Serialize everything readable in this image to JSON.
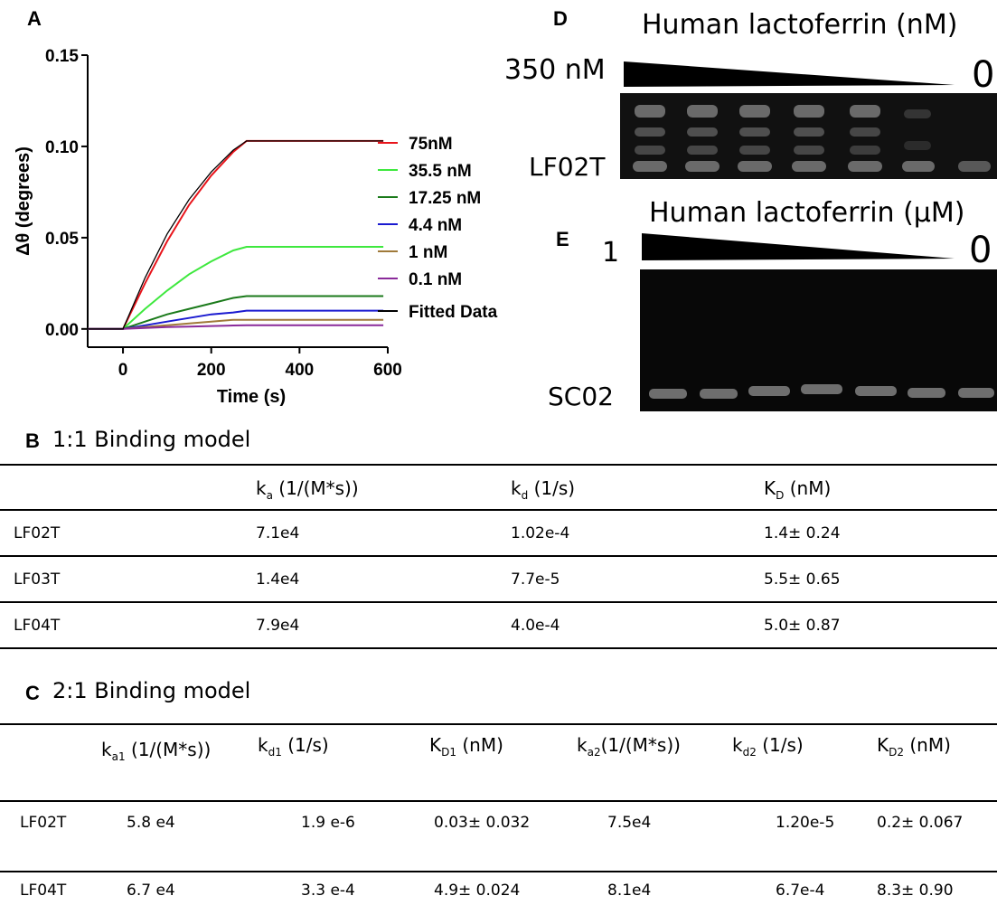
{
  "panel_labels": [
    "A",
    "B",
    "C",
    "D",
    "E"
  ],
  "chart_data": {
    "type": "line",
    "y_label": "Δθ (degrees)",
    "x_label": "Time (s)",
    "x": [
      -80,
      0,
      50,
      100,
      150,
      200,
      250,
      280,
      350,
      450,
      550,
      590
    ],
    "xlim": [
      -80,
      600
    ],
    "xticks": [
      0,
      200,
      400,
      600
    ],
    "ylim": [
      -0.01,
      0.15
    ],
    "yticks": [
      {
        "value": 0,
        "label": "0.00"
      },
      {
        "value": 0.05,
        "label": "0.05"
      },
      {
        "value": 0.1,
        "label": "0.10"
      },
      {
        "value": 0.15,
        "label": "0.15"
      }
    ],
    "series": [
      {
        "name": "75nM",
        "color": "#e8141b",
        "values": [
          0,
          0,
          0.025,
          0.048,
          0.068,
          0.084,
          0.097,
          0.103,
          0.103,
          0.103,
          0.103,
          0.103
        ]
      },
      {
        "name": "35.5 nM",
        "color": "#3ee83e",
        "values": [
          0,
          0,
          0.011,
          0.021,
          0.03,
          0.037,
          0.043,
          0.045,
          0.045,
          0.045,
          0.045,
          0.045
        ]
      },
      {
        "name": "17.25 nM",
        "color": "#1a7a1a",
        "values": [
          0,
          0,
          0.004,
          0.008,
          0.011,
          0.014,
          0.017,
          0.018,
          0.018,
          0.018,
          0.018,
          0.018
        ]
      },
      {
        "name": "4.4 nM",
        "color": "#1a1ad0",
        "values": [
          0,
          0,
          0.002,
          0.004,
          0.006,
          0.008,
          0.009,
          0.01,
          0.01,
          0.01,
          0.01,
          0.01
        ]
      },
      {
        "name": "1 nM",
        "color": "#a07a3a",
        "values": [
          0,
          0,
          0.001,
          0.002,
          0.003,
          0.004,
          0.005,
          0.005,
          0.005,
          0.005,
          0.005,
          0.005
        ]
      },
      {
        "name": "0.1 nM",
        "color": "#8a2a9a",
        "values": [
          0,
          0,
          0.0005,
          0.001,
          0.0013,
          0.0016,
          0.0019,
          0.002,
          0.002,
          0.002,
          0.002,
          0.002
        ]
      },
      {
        "name": "Fitted Data",
        "color": "#000000",
        "values": [
          0,
          0,
          0.028,
          0.052,
          0.071,
          0.086,
          0.098,
          0.103,
          0.103,
          0.103,
          0.103,
          0.103
        ]
      }
    ]
  },
  "gel_d": {
    "title": "Human lactoferrin (nM)",
    "left_label": "350 nM",
    "right_label": "0",
    "sample": "LF02T"
  },
  "gel_e": {
    "title": "Human lactoferrin (μM)",
    "left_label": "1",
    "right_label": "0",
    "sample": "SC02"
  },
  "table_b": {
    "title": "1:1 Binding model",
    "header": [
      {
        "main": "k",
        "sub": "a",
        "rest": " (1/(M*s))"
      },
      {
        "main": "k",
        "sub": "d",
        "rest": " (1/s)"
      },
      {
        "main": "K",
        "sub": "D",
        "rest": " (nM)"
      }
    ],
    "rows": [
      [
        "LF02T",
        "7.1e4",
        "1.02e-4",
        "1.4± 0.24"
      ],
      [
        "LF03T",
        "1.4e4",
        "7.7e-5",
        "5.5± 0.65"
      ],
      [
        "LF04T",
        "7.9e4",
        "4.0e-4",
        "5.0± 0.87"
      ]
    ]
  },
  "table_c": {
    "title": "2:1 Binding model",
    "header": [
      {
        "main": "k",
        "sub": "a1",
        "rest": " (1/(M*s))"
      },
      {
        "main": "k",
        "sub": "d1",
        "rest": " (1/s)"
      },
      {
        "main": "K",
        "sub": "D1",
        "rest": " (nM)"
      },
      {
        "main": "k",
        "sub": "a2",
        "rest": "(1/(M*s))"
      },
      {
        "main": "k",
        "sub": "d2",
        "rest": " (1/s)"
      },
      {
        "main": "K",
        "sub": "D2",
        "rest": " (nM)"
      }
    ],
    "rows": [
      [
        "LF02T",
        "5.8 e4",
        "1.9 e-6",
        "0.03± 0.032",
        "7.5e4",
        "1.20e-5",
        "0.2± 0.067"
      ],
      [
        "LF04T",
        "6.7 e4",
        "3.3 e-4",
        "4.9± 0.024",
        "8.1e4",
        "6.7e-4",
        "8.3± 0.90"
      ]
    ]
  }
}
